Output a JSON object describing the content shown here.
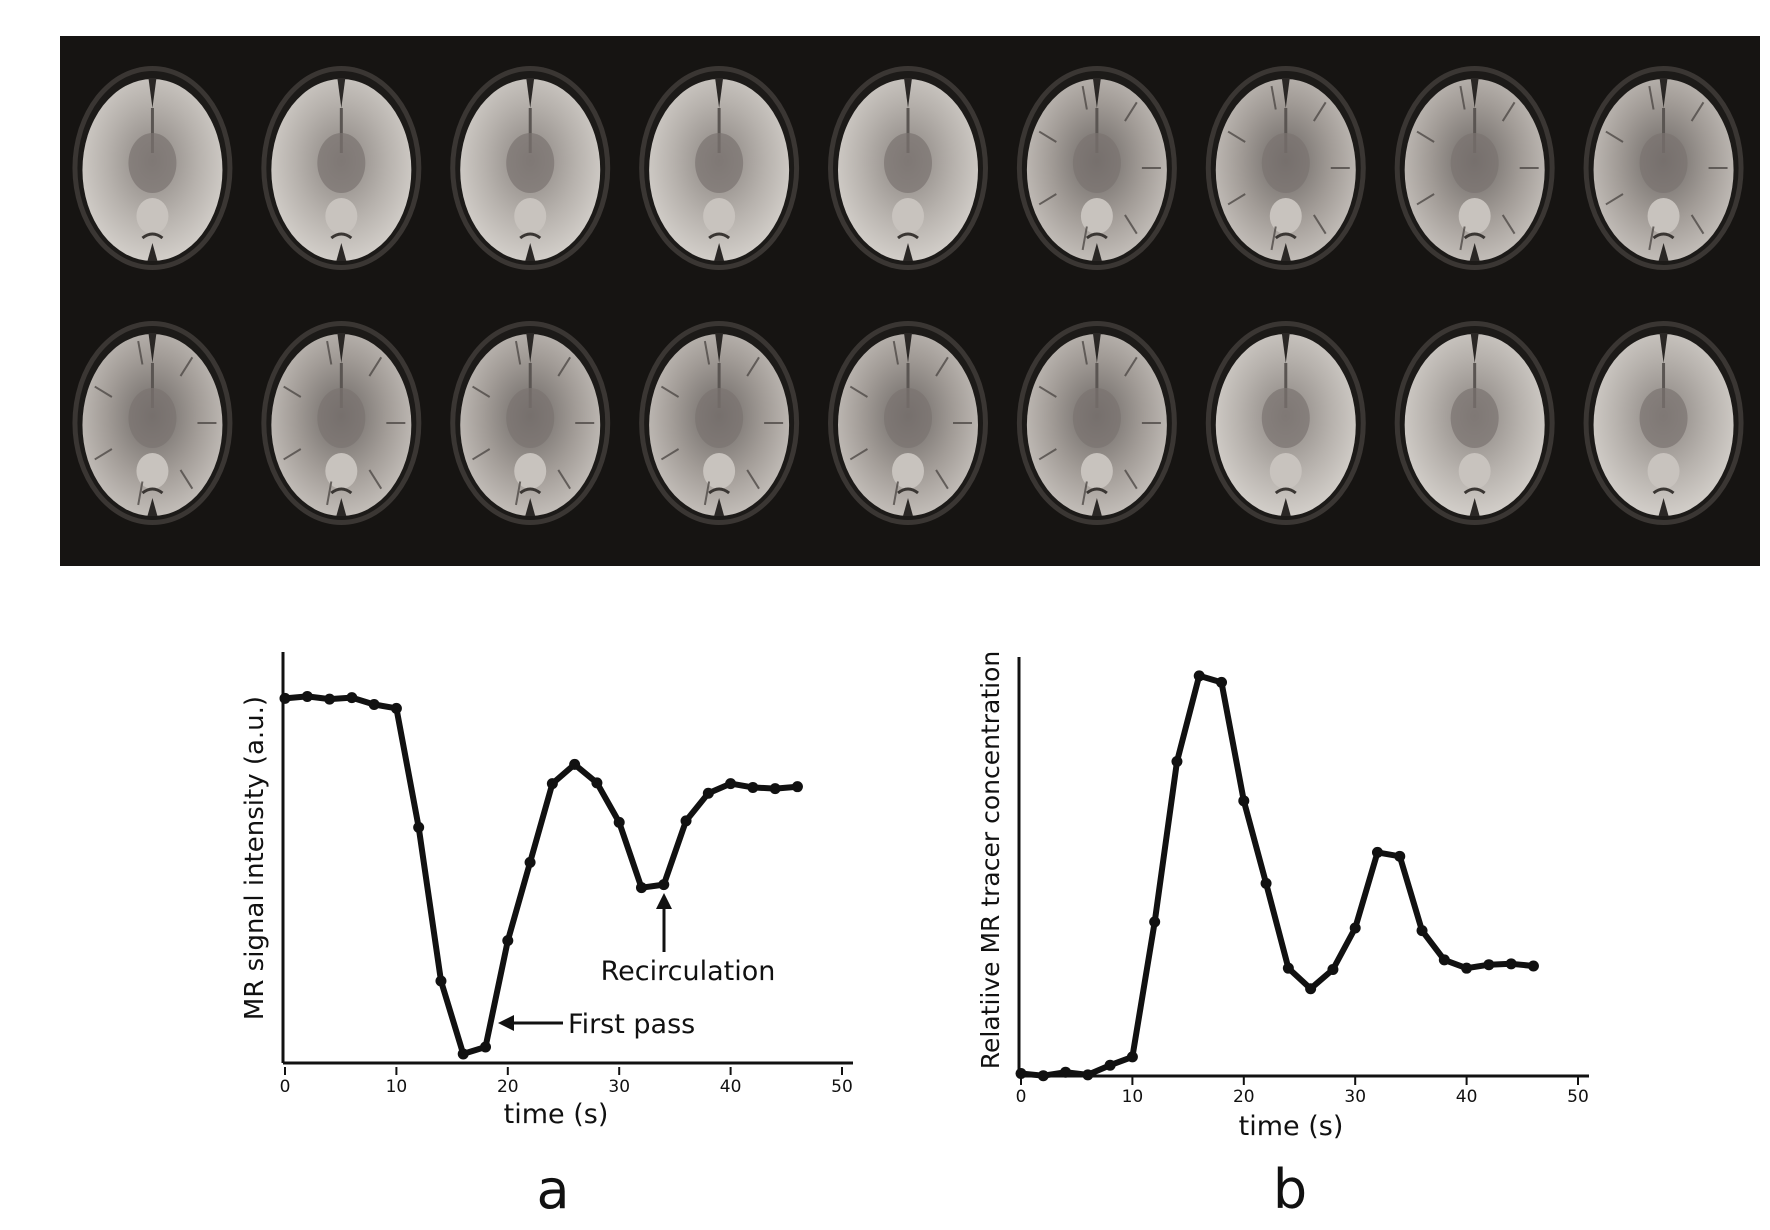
{
  "figure": {
    "brain_panel": {
      "rows": 2,
      "cols": 9,
      "frame_count": 18
    },
    "panel_labels": [
      "a",
      "b"
    ]
  },
  "chart_data": [
    {
      "type": "line",
      "xlabel": "time (s)",
      "ylabel": "MR signal intensity (a.u.)",
      "xlim": [
        0,
        50
      ],
      "xticks": [
        0,
        10,
        20,
        30,
        40,
        50
      ],
      "ylim": [
        0,
        100
      ],
      "grid": false,
      "series": [
        {
          "x": [
            0,
            2,
            4,
            6,
            8,
            10,
            12,
            14,
            16,
            18,
            20,
            22,
            24,
            26,
            28,
            30,
            32,
            34,
            36,
            38,
            40,
            42,
            44,
            46
          ],
          "y": [
            96,
            96.5,
            95.8,
            96.2,
            94.4,
            93.4,
            62.4,
            22.4,
            3.4,
            5.2,
            32.9,
            53.3,
            73.8,
            78.8,
            74,
            63.7,
            46.7,
            47.5,
            64.1,
            71.3,
            73.8,
            72.8,
            72.5,
            73
          ],
          "color": "#111111"
        }
      ],
      "annotations": [
        "First pass",
        "Recirculation"
      ]
    },
    {
      "type": "line",
      "xlabel": "time (s)",
      "ylabel": "Relatiive MR tracer concentration",
      "xlim": [
        0,
        50
      ],
      "xticks": [
        0,
        10,
        20,
        30,
        40,
        50
      ],
      "ylim": [
        0,
        100
      ],
      "grid": false,
      "series": [
        {
          "x": [
            0,
            2,
            4,
            6,
            8,
            10,
            12,
            14,
            16,
            18,
            20,
            22,
            24,
            26,
            28,
            30,
            32,
            34,
            36,
            38,
            40,
            42,
            44,
            46
          ],
          "y": [
            0.8,
            0.3,
            1.1,
            0.5,
            2.7,
            4.6,
            35.5,
            72.2,
            91.8,
            90.3,
            63.2,
            44.3,
            24.9,
            20.2,
            24.6,
            34.1,
            51.4,
            50.5,
            33.5,
            26.8,
            24.9,
            25.7,
            25.9,
            25.4
          ],
          "color": "#111111"
        }
      ]
    }
  ]
}
